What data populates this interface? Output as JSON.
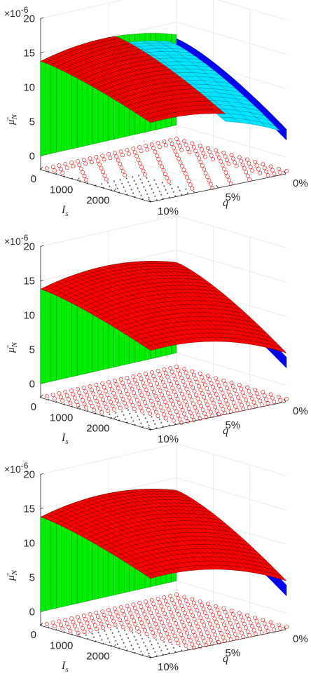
{
  "chart_data": [
    {
      "type": "surface3d",
      "panel": "top",
      "z_multiplier_label": "×10",
      "z_multiplier_exp": "-6",
      "zlabel": "μ̄",
      "zlabel_sub": "N",
      "xlabel": "I",
      "xlabel_sub": "s",
      "ylabel": "q",
      "z_ticks": [
        "0",
        "5",
        "10",
        "15",
        "20"
      ],
      "x_ticks": [
        "0",
        "1000",
        "2000"
      ],
      "y_ticks": [
        "0%",
        "5%",
        "10%"
      ],
      "zlim": [
        -2,
        20
      ],
      "xlim": [
        0,
        3000
      ],
      "ylim": [
        0,
        10
      ],
      "grid": true,
      "surface_colors": [
        "#ff0000",
        "#00ee00",
        "#0000ff",
        "#00e5ff"
      ],
      "marker_colors": [
        "#ff0000",
        "#000000"
      ],
      "visible_layers": [
        "red",
        "cyan",
        "blue",
        "green"
      ],
      "peak_value": 15,
      "edge_value": 6.5,
      "floor_pattern": "red circles along q axis, black stars block at high q"
    },
    {
      "type": "surface3d",
      "panel": "middle",
      "z_multiplier_label": "×10",
      "z_multiplier_exp": "-6",
      "zlabel": "μ̄",
      "zlabel_sub": "N",
      "xlabel": "I",
      "xlabel_sub": "s",
      "ylabel": "q",
      "z_ticks": [
        "0",
        "5",
        "10",
        "15",
        "20"
      ],
      "x_ticks": [
        "0",
        "1000",
        "2000"
      ],
      "y_ticks": [
        "0%",
        "5%",
        "10%"
      ],
      "zlim": [
        -2,
        20
      ],
      "xlim": [
        0,
        3000
      ],
      "ylim": [
        0,
        10
      ],
      "grid": true,
      "surface_colors": [
        "#ff0000",
        "#00ee00",
        "#0000ff"
      ],
      "marker_colors": [
        "#ff0000",
        "#000000"
      ],
      "visible_layers": [
        "red",
        "blue",
        "green"
      ],
      "peak_value": 15,
      "edge_value": 7,
      "floor_pattern": "red circles spread over floor, black stars near high q"
    },
    {
      "type": "surface3d",
      "panel": "bottom",
      "z_multiplier_label": "×10",
      "z_multiplier_exp": "-6",
      "zlabel": "μ̄",
      "zlabel_sub": "N",
      "xlabel": "I",
      "xlabel_sub": "s",
      "ylabel": "q",
      "z_ticks": [
        "0",
        "5",
        "10",
        "15",
        "20"
      ],
      "x_ticks": [
        "0",
        "1000",
        "2000"
      ],
      "y_ticks": [
        "0%",
        "5%",
        "10%"
      ],
      "zlim": [
        -2,
        20
      ],
      "xlim": [
        0,
        3000
      ],
      "ylim": [
        0,
        10
      ],
      "grid": true,
      "surface_colors": [
        "#ff0000",
        "#00ee00",
        "#0000ff"
      ],
      "marker_colors": [
        "#ff0000",
        "#000000"
      ],
      "visible_layers": [
        "red",
        "blue",
        "green"
      ],
      "peak_value": 15,
      "edge_value": 7,
      "floor_pattern": "red circles covering floor, black stars at high I"
    }
  ]
}
